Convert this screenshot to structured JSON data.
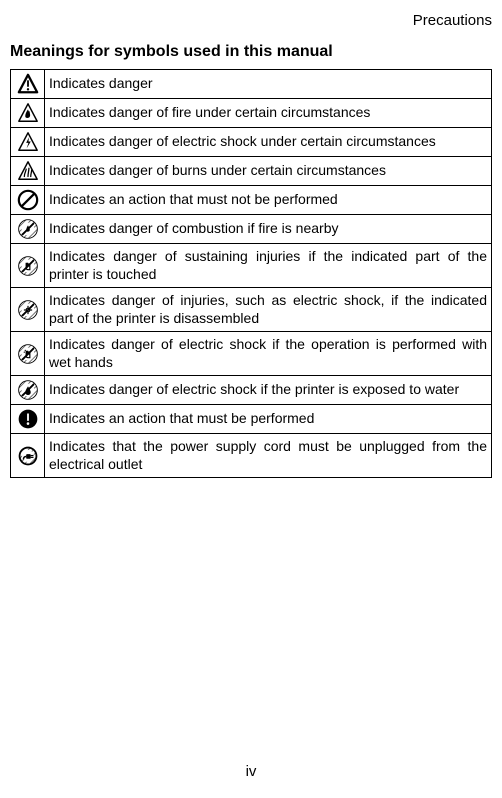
{
  "header": "Precautions",
  "heading": "Meanings for symbols used in this manual",
  "page_number": "iv",
  "symbols": [
    {
      "icon": "warning-triangle",
      "desc": "Indicates danger"
    },
    {
      "icon": "fire-triangle",
      "desc": "Indicates danger of fire under certain circumstances"
    },
    {
      "icon": "shock-triangle",
      "desc": "Indicates danger of electric shock under certain circumstances"
    },
    {
      "icon": "burn-triangle",
      "desc": "Indicates danger of burns under certain circumstances"
    },
    {
      "icon": "prohibit-plain",
      "desc": "Indicates an action that must not be performed"
    },
    {
      "icon": "prohibit-fire",
      "desc": "Indicates danger of combustion if fire is nearby"
    },
    {
      "icon": "prohibit-touch",
      "desc": "Indicates danger of sustaining injuries if the indicated part of the printer is touched"
    },
    {
      "icon": "prohibit-disassemble",
      "desc": "Indicates danger of injuries, such as electric shock, if the indicated part of the printer is disassembled"
    },
    {
      "icon": "prohibit-wet-hands",
      "desc": "Indicates danger of electric shock if the operation is performed with wet hands"
    },
    {
      "icon": "prohibit-water",
      "desc": "Indicates danger of electric shock if the printer is exposed to water"
    },
    {
      "icon": "mandatory-action",
      "desc": "Indicates an action that must be performed"
    },
    {
      "icon": "unplug",
      "desc": "Indicates that the power supply cord must be unplugged from the electrical outlet"
    }
  ],
  "colors": {
    "text": "#000000",
    "background": "#ffffff",
    "border": "#000000",
    "hatch": "#444444"
  }
}
